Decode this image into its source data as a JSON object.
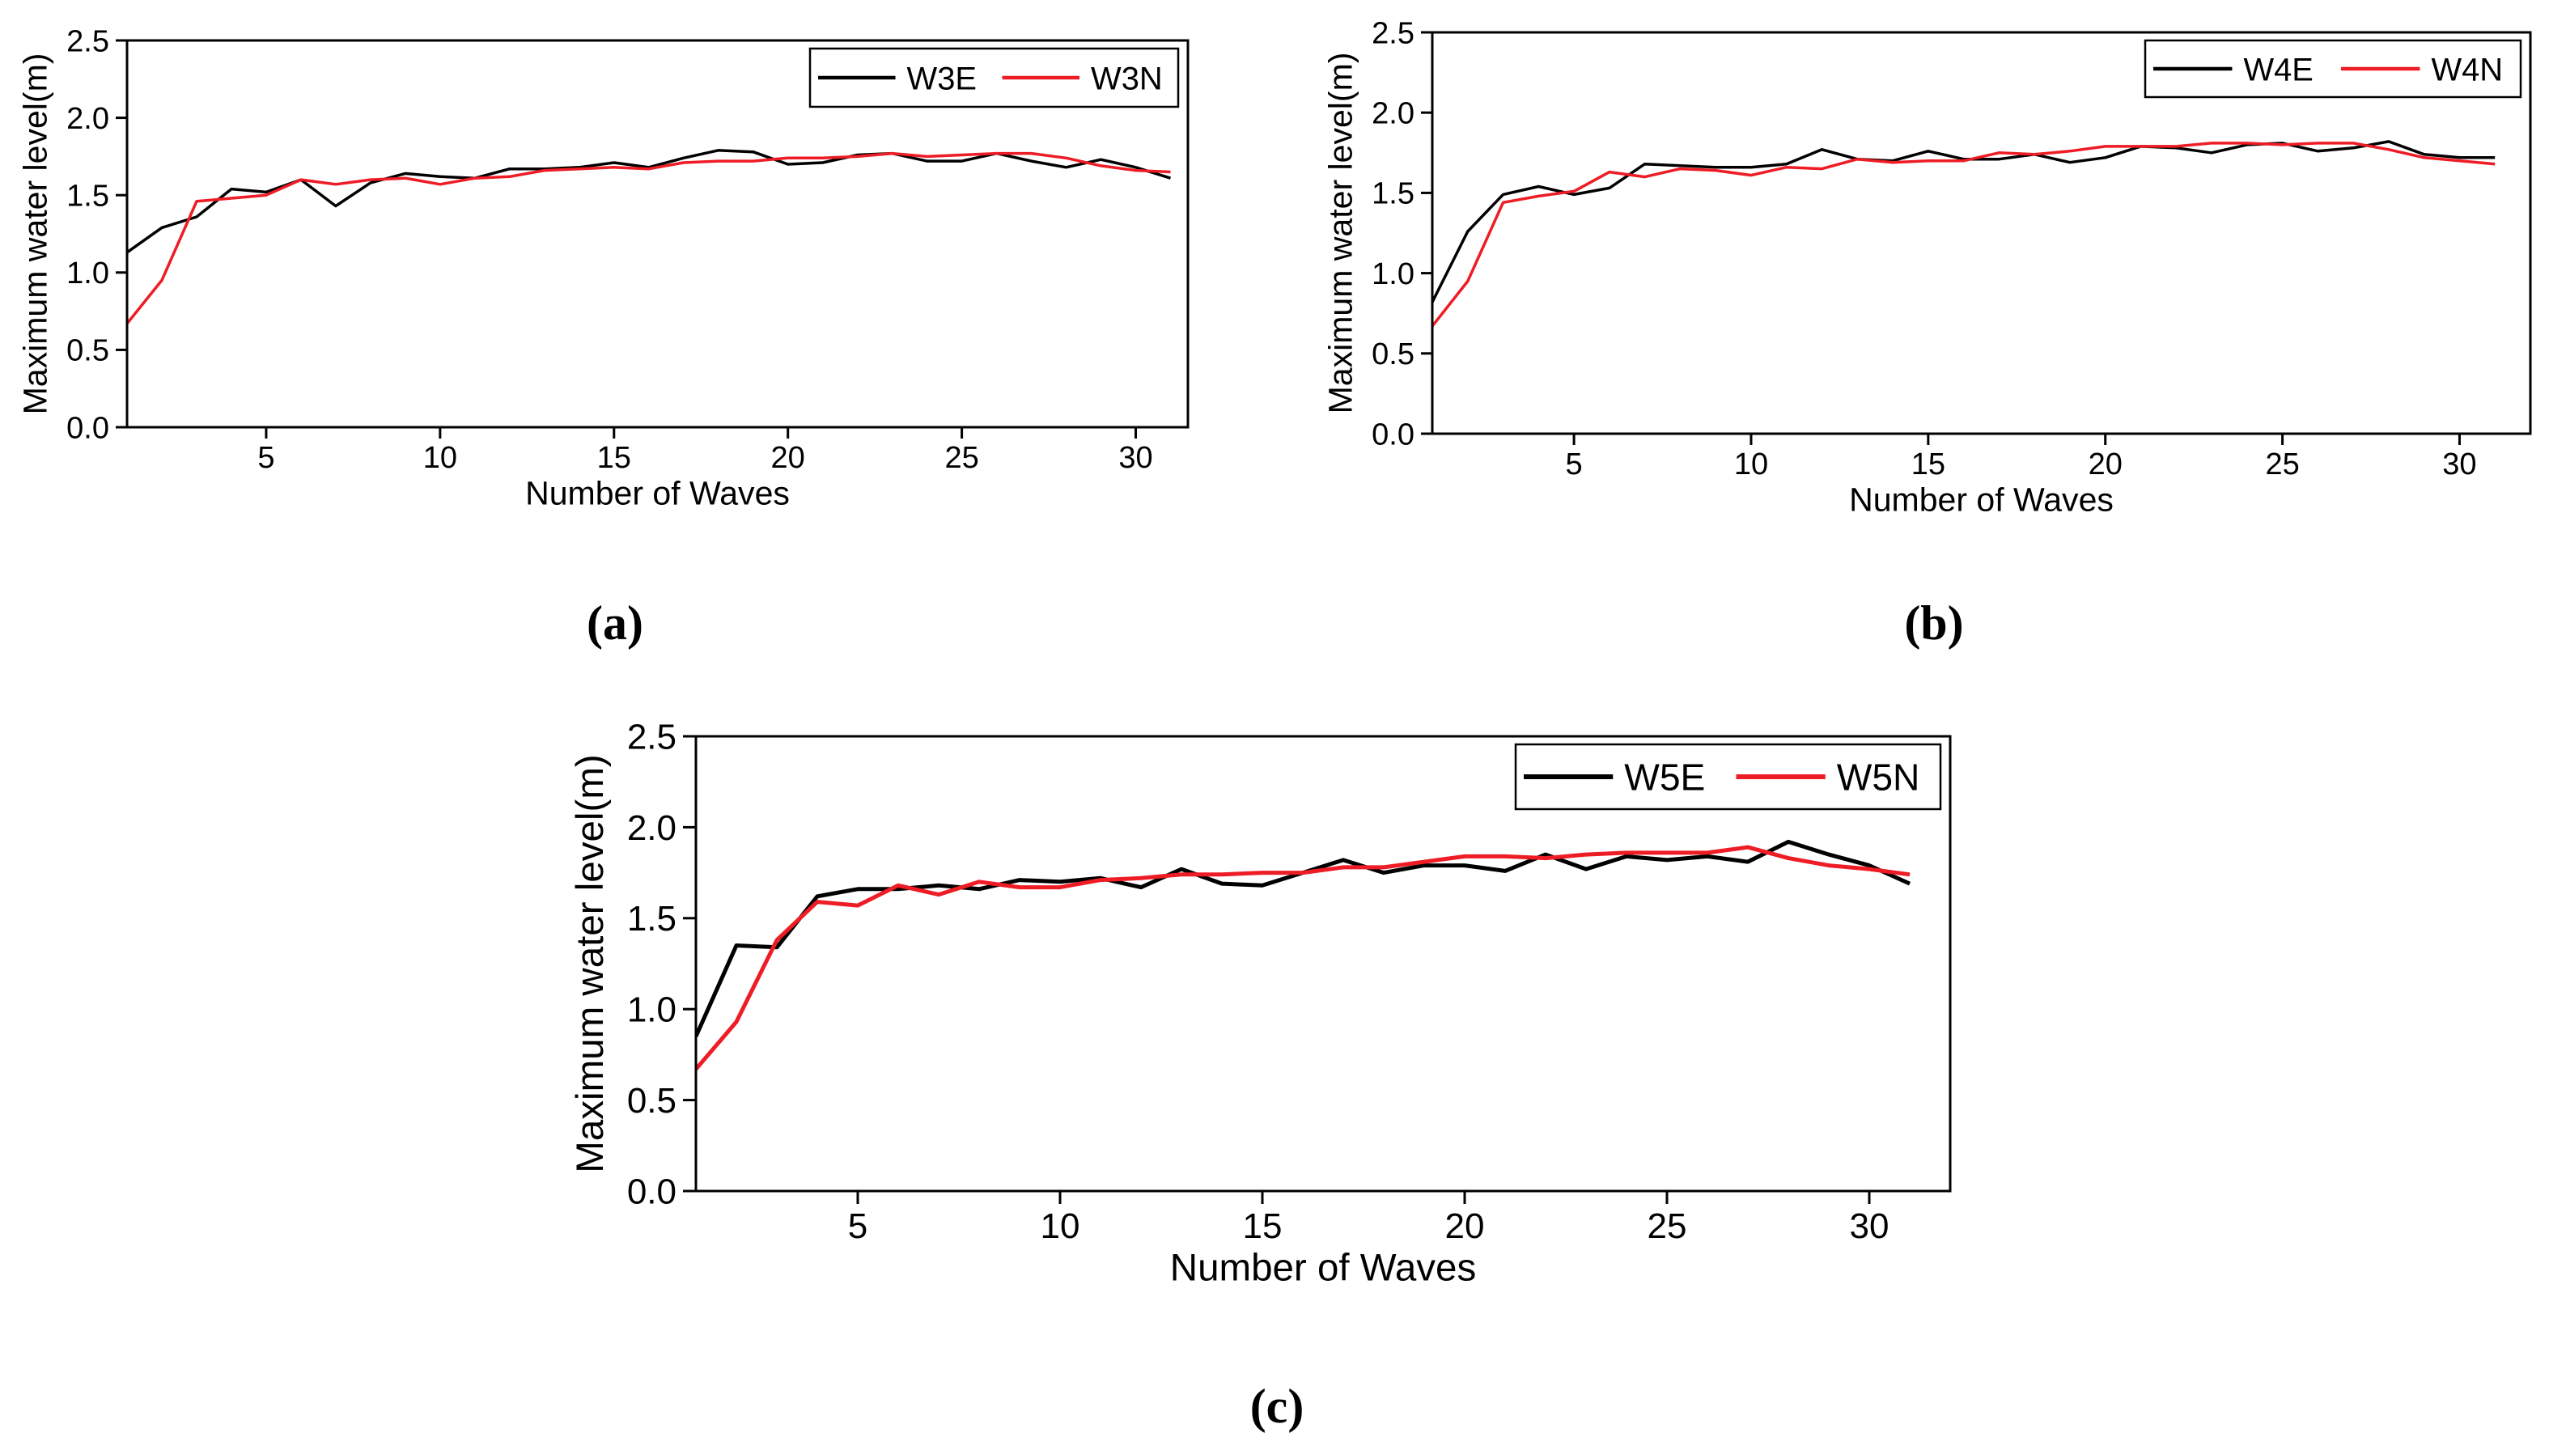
{
  "colors": {
    "series_e": "#000000",
    "series_n": "#ee1c25",
    "axis": "#000000"
  },
  "chart_data": [
    {
      "type": "line",
      "panel_label": "(a)",
      "xlabel": "Number of Waves",
      "ylabel": "Maximum water level(m)",
      "xlim": [
        1,
        31.5
      ],
      "ylim": [
        0,
        2.5
      ],
      "xticks": [
        5,
        10,
        15,
        20,
        25,
        30
      ],
      "yticks": [
        0.0,
        0.5,
        1.0,
        1.5,
        2.0,
        2.5
      ],
      "ytick_labels": [
        "0.0",
        "0.5",
        "1.0",
        "1.5",
        "2.0",
        "2.5"
      ],
      "legend_position": "top-right",
      "x": [
        1,
        2,
        3,
        4,
        5,
        6,
        7,
        8,
        9,
        10,
        11,
        12,
        13,
        14,
        15,
        16,
        17,
        18,
        19,
        20,
        21,
        22,
        23,
        24,
        25,
        26,
        27,
        28,
        29,
        30,
        31
      ],
      "series": [
        {
          "name": "W3E",
          "color": "#000000",
          "values": [
            1.13,
            1.29,
            1.36,
            1.54,
            1.52,
            1.6,
            1.43,
            1.58,
            1.64,
            1.62,
            1.61,
            1.67,
            1.67,
            1.68,
            1.71,
            1.68,
            1.74,
            1.79,
            1.78,
            1.7,
            1.71,
            1.76,
            1.77,
            1.72,
            1.72,
            1.77,
            1.72,
            1.68,
            1.73,
            1.68,
            1.61
          ]
        },
        {
          "name": "W3N",
          "color": "#ee1c25",
          "values": [
            0.67,
            0.95,
            1.46,
            1.48,
            1.5,
            1.6,
            1.57,
            1.6,
            1.61,
            1.57,
            1.61,
            1.62,
            1.66,
            1.67,
            1.68,
            1.67,
            1.71,
            1.72,
            1.72,
            1.74,
            1.74,
            1.75,
            1.77,
            1.75,
            1.76,
            1.77,
            1.77,
            1.74,
            1.69,
            1.66,
            1.65
          ]
        }
      ]
    },
    {
      "type": "line",
      "panel_label": "(b)",
      "xlabel": "Number of Waves",
      "ylabel": "Maximum water level(m)",
      "xlim": [
        1,
        32
      ],
      "ylim": [
        0,
        2.5
      ],
      "xticks": [
        5,
        10,
        15,
        20,
        25,
        30
      ],
      "yticks": [
        0.0,
        0.5,
        1.0,
        1.5,
        2.0,
        2.5
      ],
      "ytick_labels": [
        "0.0",
        "0.5",
        "1.0",
        "1.5",
        "2.0",
        "2.5"
      ],
      "legend_position": "top-right",
      "x": [
        1,
        2,
        3,
        4,
        5,
        6,
        7,
        8,
        9,
        10,
        11,
        12,
        13,
        14,
        15,
        16,
        17,
        18,
        19,
        20,
        21,
        22,
        23,
        24,
        25,
        26,
        27,
        28,
        29,
        30,
        31
      ],
      "series": [
        {
          "name": "W4E",
          "color": "#000000",
          "values": [
            0.82,
            1.26,
            1.49,
            1.54,
            1.49,
            1.53,
            1.68,
            1.67,
            1.66,
            1.66,
            1.68,
            1.77,
            1.71,
            1.7,
            1.76,
            1.71,
            1.71,
            1.74,
            1.69,
            1.72,
            1.79,
            1.78,
            1.75,
            1.8,
            1.81,
            1.76,
            1.78,
            1.82,
            1.74,
            1.72,
            1.72
          ]
        },
        {
          "name": "W4N",
          "color": "#ee1c25",
          "values": [
            0.67,
            0.95,
            1.44,
            1.48,
            1.51,
            1.63,
            1.6,
            1.65,
            1.64,
            1.61,
            1.66,
            1.65,
            1.71,
            1.69,
            1.7,
            1.7,
            1.75,
            1.74,
            1.76,
            1.79,
            1.79,
            1.79,
            1.81,
            1.81,
            1.8,
            1.81,
            1.81,
            1.77,
            1.72,
            1.7,
            1.68
          ]
        }
      ]
    },
    {
      "type": "line",
      "panel_label": "(c)",
      "xlabel": "Number of Waves",
      "ylabel": "Maximum water level(m)",
      "xlim": [
        1,
        32
      ],
      "ylim": [
        0,
        2.5
      ],
      "xticks": [
        5,
        10,
        15,
        20,
        25,
        30
      ],
      "yticks": [
        0.0,
        0.5,
        1.0,
        1.5,
        2.0,
        2.5
      ],
      "ytick_labels": [
        "0.0",
        "0.5",
        "1.0",
        "1.5",
        "2.0",
        "2.5"
      ],
      "legend_position": "top-right",
      "x": [
        1,
        2,
        3,
        4,
        5,
        6,
        7,
        8,
        9,
        10,
        11,
        12,
        13,
        14,
        15,
        16,
        17,
        18,
        19,
        20,
        21,
        22,
        23,
        24,
        25,
        26,
        27,
        28,
        29,
        30,
        31
      ],
      "series": [
        {
          "name": "W5E",
          "color": "#000000",
          "values": [
            0.85,
            1.35,
            1.34,
            1.62,
            1.66,
            1.66,
            1.68,
            1.66,
            1.71,
            1.7,
            1.72,
            1.67,
            1.77,
            1.69,
            1.68,
            1.75,
            1.82,
            1.75,
            1.79,
            1.79,
            1.76,
            1.85,
            1.77,
            1.84,
            1.82,
            1.84,
            1.81,
            1.92,
            1.85,
            1.79,
            1.69
          ]
        },
        {
          "name": "W5N",
          "color": "#ee1c25",
          "values": [
            0.67,
            0.93,
            1.38,
            1.59,
            1.57,
            1.68,
            1.63,
            1.7,
            1.67,
            1.67,
            1.71,
            1.72,
            1.74,
            1.74,
            1.75,
            1.75,
            1.78,
            1.78,
            1.81,
            1.84,
            1.84,
            1.83,
            1.85,
            1.86,
            1.86,
            1.86,
            1.89,
            1.83,
            1.79,
            1.77,
            1.74
          ]
        }
      ]
    }
  ]
}
